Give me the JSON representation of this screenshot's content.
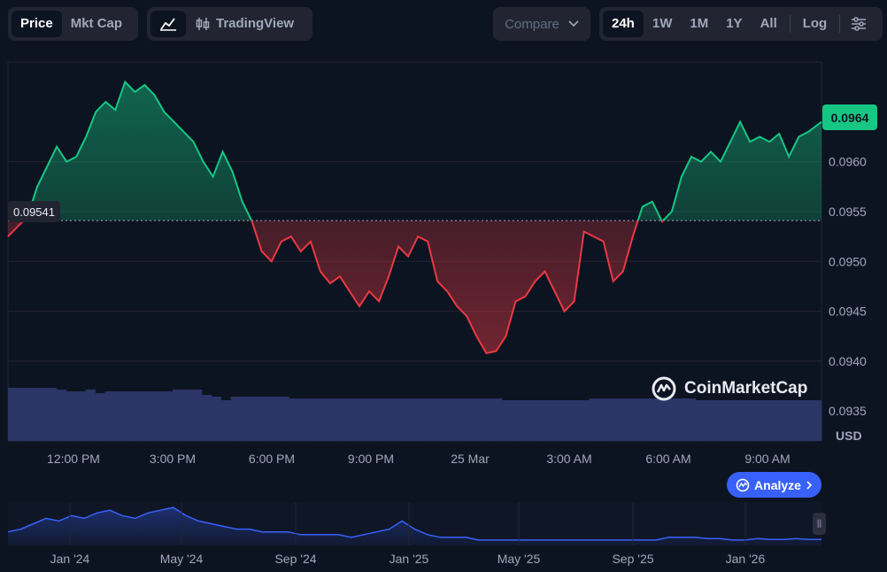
{
  "toolbar": {
    "price_tab": "Price",
    "mktcap_tab": "Mkt Cap",
    "tradingview_label": "TradingView",
    "compare_label": "Compare",
    "ranges": [
      "24h",
      "1W",
      "1M",
      "1Y",
      "All"
    ],
    "active_range": "24h",
    "log_label": "Log"
  },
  "price_label": "0.0964",
  "open_price_label": "0.09541",
  "currency_label": "USD",
  "watermark": "CoinMarketCap",
  "analyze_label": "Analyze",
  "colors": {
    "up": "#16c784",
    "down": "#ea3943",
    "accent": "#3861fb",
    "background": "#0d1421"
  },
  "chart_data": [
    {
      "type": "area",
      "title": "",
      "x_ticks": [
        "12:00 PM",
        "3:00 PM",
        "6:00 PM",
        "9:00 PM",
        "25 Mar",
        "3:00 AM",
        "6:00 AM",
        "9:00 AM"
      ],
      "y_ticks": [
        "0.0935",
        "0.0940",
        "0.0945",
        "0.0950",
        "0.0955",
        "0.0960"
      ],
      "ylim": [
        0.0932,
        0.097
      ],
      "baseline": 0.09541,
      "x_range_hours": [
        9.6,
        34.6
      ],
      "series": [
        {
          "x": [
            9.6,
            9.9,
            10.2,
            10.5,
            10.8,
            11.1,
            11.4,
            11.7,
            12.0,
            12.3,
            12.6,
            12.9,
            13.2,
            13.5,
            13.8,
            14.1,
            14.4,
            14.7,
            15.0,
            15.3,
            15.6,
            15.9,
            16.2,
            16.5,
            16.8,
            17.1,
            17.4,
            17.7,
            18.0,
            18.3,
            18.6,
            18.9,
            19.2,
            19.5,
            19.8,
            20.1,
            20.4,
            20.7,
            21.0,
            21.3,
            21.6,
            21.9,
            22.2,
            22.5,
            22.8,
            23.1,
            23.4,
            23.7,
            24.0,
            24.3,
            24.6,
            24.9,
            25.2,
            25.5,
            25.8,
            26.1,
            26.4,
            26.7,
            27.0,
            27.3,
            27.6,
            27.9,
            28.2,
            28.5,
            28.8,
            29.1,
            29.4,
            29.7,
            30.0,
            30.3,
            30.6,
            30.9,
            31.2,
            31.5,
            31.8,
            32.1,
            32.4,
            32.7,
            33.0,
            33.3,
            33.6,
            33.9,
            34.2,
            34.6
          ],
          "values": [
            0.09525,
            0.09535,
            0.09545,
            0.09575,
            0.09595,
            0.09615,
            0.096,
            0.09605,
            0.09625,
            0.0965,
            0.0966,
            0.09652,
            0.0968,
            0.0967,
            0.09677,
            0.09667,
            0.0965,
            0.0964,
            0.0963,
            0.0962,
            0.096,
            0.09585,
            0.0961,
            0.0959,
            0.0956,
            0.0954,
            0.0951,
            0.095,
            0.0952,
            0.09525,
            0.0951,
            0.0952,
            0.0949,
            0.09478,
            0.09485,
            0.0947,
            0.09455,
            0.0947,
            0.0946,
            0.09485,
            0.09515,
            0.09505,
            0.09525,
            0.0952,
            0.0948,
            0.0947,
            0.09455,
            0.09445,
            0.09425,
            0.09408,
            0.0941,
            0.09425,
            0.0946,
            0.09465,
            0.0948,
            0.0949,
            0.0947,
            0.0945,
            0.0946,
            0.0953,
            0.09525,
            0.0952,
            0.0948,
            0.0949,
            0.09525,
            0.09555,
            0.0956,
            0.0954,
            0.0955,
            0.09585,
            0.09605,
            0.096,
            0.0961,
            0.096,
            0.0962,
            0.0964,
            0.0962,
            0.09625,
            0.0962,
            0.09628,
            0.09605,
            0.09625,
            0.0963,
            0.0964
          ]
        }
      ],
      "volume": {
        "values": [
          0.0995,
          0.0995,
          0.0995,
          0.0995,
          0.0995,
          0.099,
          0.0985,
          0.0985,
          0.099,
          0.098,
          0.0985,
          0.0985,
          0.0985,
          0.0985,
          0.0985,
          0.0985,
          0.0985,
          0.099,
          0.099,
          0.099,
          0.0975,
          0.097,
          0.096,
          0.097,
          0.097,
          0.097,
          0.097,
          0.097,
          0.097,
          0.0965,
          0.0965,
          0.0965,
          0.0965,
          0.0965,
          0.0965,
          0.0965,
          0.0965,
          0.0965,
          0.0965,
          0.0965,
          0.0965,
          0.0965,
          0.0965,
          0.0965,
          0.0965,
          0.0965,
          0.0965,
          0.0965,
          0.0965,
          0.0965,
          0.0965,
          0.096,
          0.096,
          0.096,
          0.096,
          0.096,
          0.096,
          0.096,
          0.096,
          0.096,
          0.0965,
          0.0965,
          0.0965,
          0.0965,
          0.0965,
          0.0965,
          0.0965,
          0.0965,
          0.0965,
          0.0965,
          0.0965,
          0.096,
          0.096,
          0.096,
          0.096,
          0.096,
          0.096,
          0.096,
          0.096,
          0.096,
          0.096,
          0.096,
          0.096,
          0.096
        ]
      }
    },
    {
      "type": "area",
      "title": "",
      "x_ticks": [
        "Jan '24",
        "May '24",
        "Sep '24",
        "Jan '25",
        "May '25",
        "Sep '25",
        "Jan '26"
      ],
      "values": [
        0.12,
        0.13,
        0.15,
        0.17,
        0.16,
        0.18,
        0.17,
        0.19,
        0.2,
        0.18,
        0.17,
        0.19,
        0.2,
        0.21,
        0.18,
        0.16,
        0.15,
        0.14,
        0.13,
        0.13,
        0.12,
        0.12,
        0.12,
        0.11,
        0.11,
        0.11,
        0.11,
        0.1,
        0.11,
        0.12,
        0.13,
        0.16,
        0.13,
        0.11,
        0.1,
        0.1,
        0.1,
        0.09,
        0.09,
        0.09,
        0.09,
        0.09,
        0.09,
        0.09,
        0.09,
        0.09,
        0.09,
        0.09,
        0.09,
        0.09,
        0.09,
        0.09,
        0.1,
        0.1,
        0.1,
        0.095,
        0.095,
        0.09,
        0.09,
        0.095,
        0.092,
        0.092,
        0.095,
        0.092,
        0.092
      ],
      "ylim": [
        0.07,
        0.23
      ]
    }
  ]
}
